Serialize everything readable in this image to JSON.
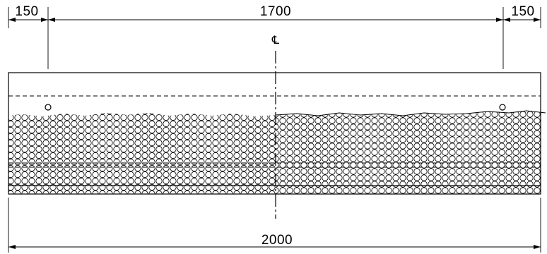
{
  "dimensions": {
    "left_offset": "150",
    "middle_span": "1700",
    "right_offset": "150",
    "total_width": "2000"
  },
  "centerline": {
    "symbol": "℄"
  }
}
